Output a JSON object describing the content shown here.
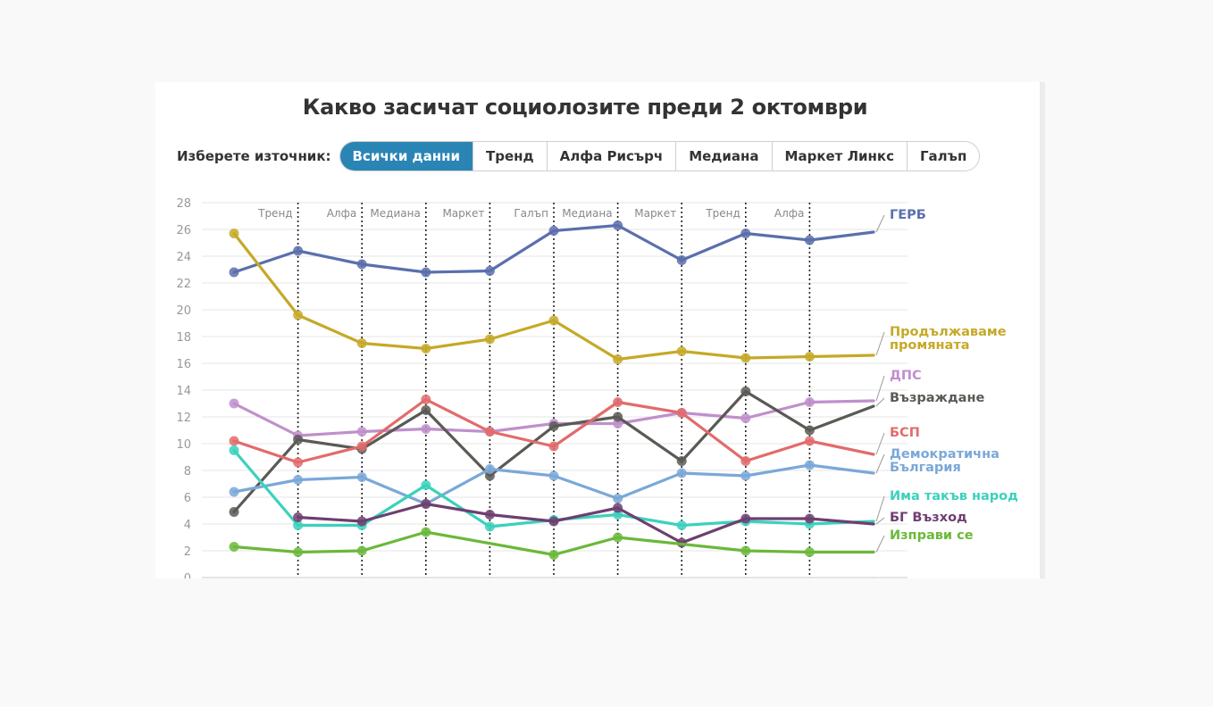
{
  "title": "Какво засичат социолозите преди 2 октомври",
  "selector": {
    "label": "Изберете източник:",
    "options": [
      "Всички данни",
      "Тренд",
      "Алфа Рисърч",
      "Медиана",
      "Маркет Линкс",
      "Галъп"
    ],
    "active_index": 0
  },
  "chart_data": {
    "type": "line",
    "title": "Какво засичат социолозите преди 2 октомври",
    "xlabel": "",
    "ylabel": "",
    "ylim": [
      0,
      28
    ],
    "yticks": [
      0,
      2,
      4,
      6,
      8,
      10,
      12,
      14,
      16,
      18,
      20,
      22,
      24,
      26,
      28
    ],
    "grid": true,
    "legend": "right",
    "poll_markers": [
      "Тренд",
      "Алфа",
      "Медиана",
      "Маркет",
      "Галъп",
      "Медиана",
      "Маркет",
      "Тренд",
      "Алфа"
    ],
    "series": [
      {
        "name": "ГЕРБ",
        "color": "#5b6fad",
        "label_lines": [
          "ГЕРБ"
        ],
        "values": [
          22.8,
          24.4,
          23.4,
          22.8,
          22.9,
          25.9,
          26.3,
          23.7,
          25.7,
          25.2,
          25.8
        ]
      },
      {
        "name": "Продължаваме промяната",
        "color": "#c5a928",
        "label_lines": [
          "Продължаваме",
          "промяната"
        ],
        "values": [
          25.7,
          19.6,
          17.5,
          17.1,
          17.8,
          19.2,
          16.3,
          16.9,
          16.4,
          16.5,
          16.6
        ]
      },
      {
        "name": "ДПС",
        "color": "#c08fcc",
        "label_lines": [
          "ДПС"
        ],
        "values": [
          13.0,
          10.6,
          10.9,
          11.1,
          10.9,
          11.5,
          11.5,
          12.3,
          11.9,
          13.1,
          13.2
        ]
      },
      {
        "name": "Възраждане",
        "color": "#5a5a55",
        "label_lines": [
          "Възраждане"
        ],
        "values": [
          4.9,
          10.3,
          9.6,
          12.5,
          7.6,
          11.3,
          12.0,
          8.7,
          13.9,
          11.0,
          12.8
        ]
      },
      {
        "name": "БСП",
        "color": "#e26b6b",
        "label_lines": [
          "БСП"
        ],
        "values": [
          10.2,
          8.6,
          9.8,
          13.3,
          10.9,
          9.8,
          13.1,
          12.3,
          8.7,
          10.2,
          9.2
        ]
      },
      {
        "name": "Демократична България",
        "color": "#7aa8d8",
        "label_lines": [
          "Демократична",
          "България"
        ],
        "values": [
          6.4,
          7.3,
          7.5,
          5.5,
          8.1,
          7.6,
          5.9,
          7.8,
          7.6,
          8.4,
          7.8
        ]
      },
      {
        "name": "Има такъв народ",
        "color": "#3bd1bd",
        "label_lines": [
          "Има такъв народ"
        ],
        "values": [
          9.5,
          3.9,
          3.9,
          6.9,
          3.8,
          4.3,
          4.7,
          3.9,
          4.2,
          4.0,
          4.2
        ]
      },
      {
        "name": "БГ Възход",
        "color": "#6e3f70",
        "label_lines": [
          "БГ Възход"
        ],
        "values": [
          null,
          4.5,
          4.2,
          5.5,
          4.7,
          4.2,
          5.2,
          2.6,
          4.4,
          4.4,
          4.0
        ]
      },
      {
        "name": "Изправи се",
        "color": "#6bb839",
        "label_lines": [
          "Изправи се"
        ],
        "values": [
          2.3,
          1.9,
          2.0,
          3.4,
          null,
          1.7,
          3.0,
          null,
          2.0,
          1.9,
          1.9
        ]
      }
    ]
  }
}
